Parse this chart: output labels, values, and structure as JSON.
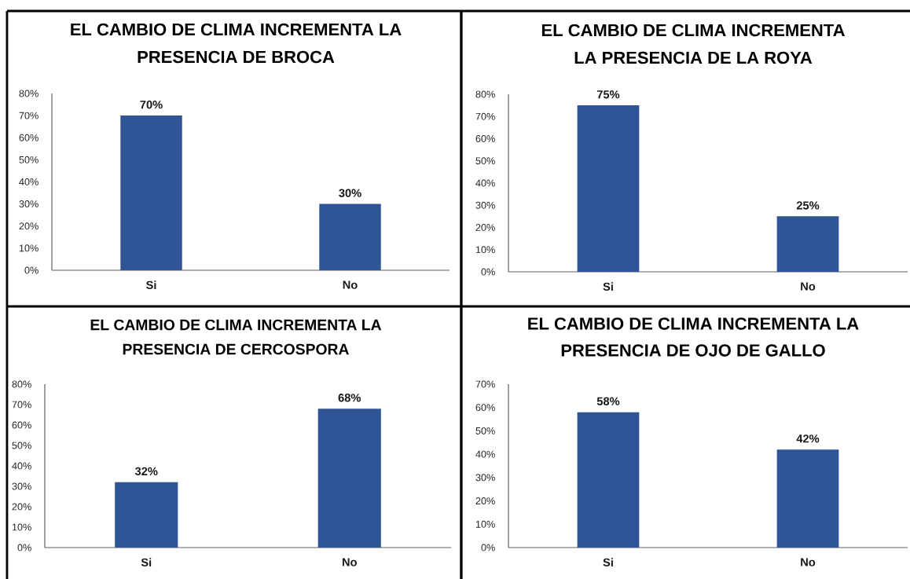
{
  "chart_data": [
    {
      "type": "bar",
      "title": "EL CAMBIO DE CLIMA INCREMENTA LA PRESENCIA DE BROCA",
      "categories": [
        "Si",
        "No"
      ],
      "values": [
        70,
        30
      ],
      "color": "#2f5597",
      "ylim": [
        0,
        80
      ],
      "yticks": [
        {
          "value": 0,
          "label": "0%"
        },
        {
          "value": 10,
          "label": "10%"
        },
        {
          "value": 20,
          "label": "20%"
        },
        {
          "value": 30,
          "label": "30%"
        },
        {
          "value": 40,
          "label": "40%"
        },
        {
          "value": 50,
          "label": "50%"
        },
        {
          "value": 60,
          "label": "60%"
        },
        {
          "value": 70,
          "label": "70%"
        },
        {
          "value": 80,
          "label": "80%"
        }
      ],
      "value_labels": [
        "70%",
        "30%"
      ]
    },
    {
      "type": "bar",
      "title": "EL CAMBIO DE CLIMA INCREMENTA LA PRESENCIA DE LA ROYA",
      "categories": [
        "Si",
        "No"
      ],
      "values": [
        75,
        25
      ],
      "color": "#2f5597",
      "ylim": [
        0,
        80
      ],
      "yticks": [
        {
          "value": 0,
          "label": "0%"
        },
        {
          "value": 10,
          "label": "10%"
        },
        {
          "value": 20,
          "label": "20%"
        },
        {
          "value": 30,
          "label": "30%"
        },
        {
          "value": 40,
          "label": "40%"
        },
        {
          "value": 50,
          "label": "50%"
        },
        {
          "value": 60,
          "label": "60%"
        },
        {
          "value": 70,
          "label": "70%"
        },
        {
          "value": 80,
          "label": "80%"
        }
      ],
      "value_labels": [
        "75%",
        "25%"
      ]
    },
    {
      "type": "bar",
      "title": "EL CAMBIO DE CLIMA INCREMENTA LA PRESENCIA DE CERCOSPORA",
      "categories": [
        "Si",
        "No"
      ],
      "values": [
        32,
        68
      ],
      "color": "#2f5597",
      "ylim": [
        0,
        80
      ],
      "yticks": [
        {
          "value": 0,
          "label": "0%"
        },
        {
          "value": 10,
          "label": "10%"
        },
        {
          "value": 20,
          "label": "20%"
        },
        {
          "value": 30,
          "label": "30%"
        },
        {
          "value": 40,
          "label": "40%"
        },
        {
          "value": 50,
          "label": "50%"
        },
        {
          "value": 60,
          "label": "60%"
        },
        {
          "value": 70,
          "label": "70%"
        },
        {
          "value": 80,
          "label": "80%"
        }
      ],
      "value_labels": [
        "32%",
        "68%"
      ]
    },
    {
      "type": "bar",
      "title": "EL CAMBIO DE CLIMA INCREMENTA LA PRESENCIA DE OJO DE GALLO",
      "categories": [
        "Si",
        "No"
      ],
      "values": [
        58,
        42
      ],
      "color": "#2f5597",
      "ylim": [
        0,
        70
      ],
      "yticks": [
        {
          "value": 0,
          "label": "0%"
        },
        {
          "value": 10,
          "label": "10%"
        },
        {
          "value": 20,
          "label": "20%"
        },
        {
          "value": 30,
          "label": "30%"
        },
        {
          "value": 40,
          "label": "40%"
        },
        {
          "value": 50,
          "label": "50%"
        },
        {
          "value": 60,
          "label": "60%"
        },
        {
          "value": 70,
          "label": "70%"
        }
      ],
      "value_labels": [
        "58%",
        "42%"
      ]
    }
  ]
}
